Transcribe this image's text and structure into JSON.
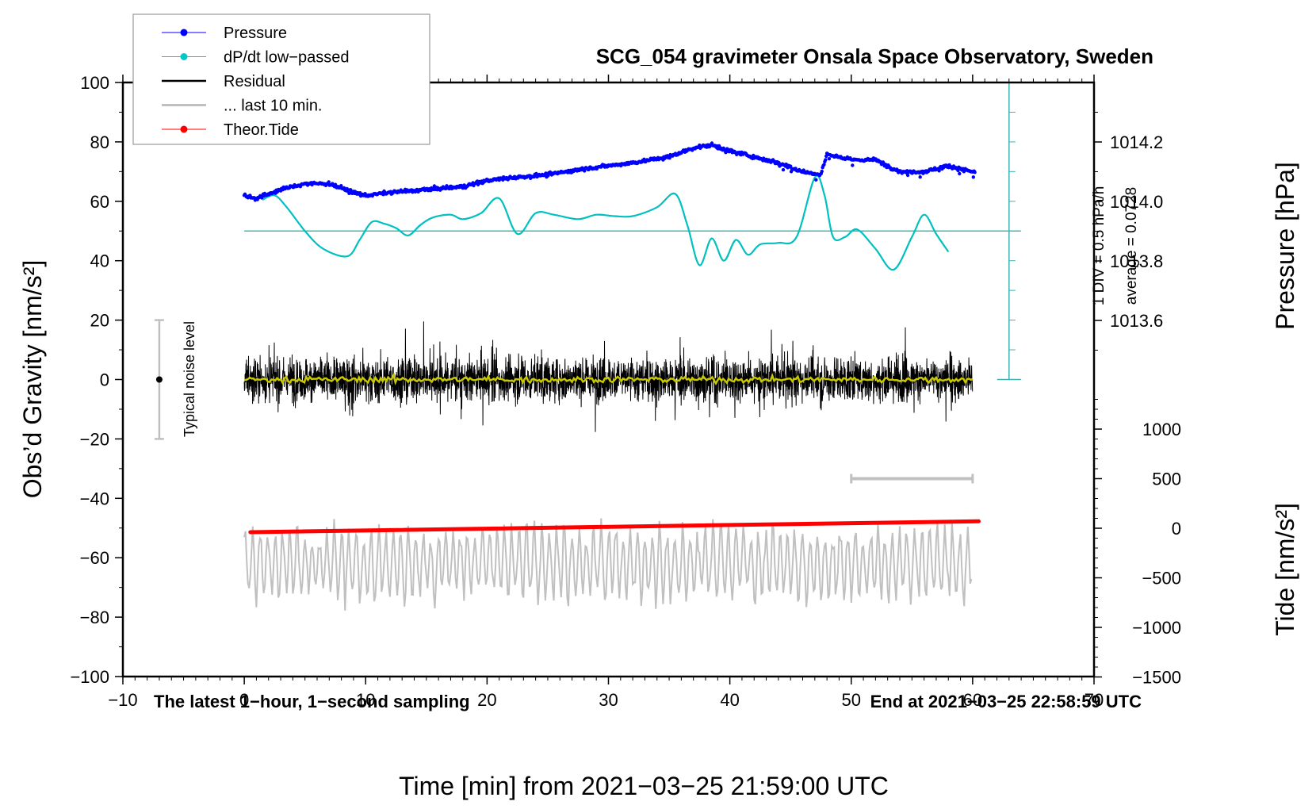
{
  "chart_data": {
    "type": "line",
    "title": "SCG_054 gravimeter Onsala Space Observatory, Sweden",
    "xlabel": "Time [min] from 2021−03−25 21:59:00 UTC",
    "ylabel_left": "Obs’d Gravity [nm/s²]",
    "ylabel_right_pressure": "Pressure [hPa]",
    "ylabel_right_tide": "Tide [nm/s²]",
    "xlim": [
      -10,
      70
    ],
    "ylim": [
      -100,
      100
    ],
    "pressure_ylim_ticks": [
      1013.6,
      1013.8,
      1014.0,
      1014.2
    ],
    "tide_ticks": [
      -1500,
      -1000,
      -500,
      0,
      500,
      1000
    ],
    "x_ticks": [
      "−10",
      "0",
      "10",
      "20",
      "30",
      "40",
      "50",
      "60",
      "70"
    ],
    "y_ticks": [
      "−100",
      "−80",
      "−60",
      "−40",
      "−20",
      "0",
      "20",
      "40",
      "60",
      "80",
      "100"
    ],
    "pressure_tick_labels": [
      "1013.6",
      "1013.8",
      "1014.0",
      "1014.2"
    ],
    "tide_tick_labels": [
      "−1500",
      "−1000",
      "−500",
      "0",
      "500",
      "1000"
    ],
    "grid": false,
    "legend_position": "top-left",
    "legend": [
      {
        "label": "Pressure",
        "color": "#0000ff",
        "marker": "dot"
      },
      {
        "label": "dP/dt low−passed",
        "color": "#00c8c8",
        "marker": "dot"
      },
      {
        "label": "Residual",
        "color": "#000000",
        "marker": "line"
      },
      {
        "label": "... last 10 min.",
        "color": "#c0c0c0",
        "marker": "line"
      },
      {
        "label": "Theor.Tide",
        "color": "#ff0000",
        "marker": "dot"
      }
    ],
    "series": [
      {
        "name": "Pressure",
        "unit": "hPa",
        "color": "#0000ff",
        "x": [
          0,
          1,
          3,
          5,
          7,
          9,
          10,
          12,
          15,
          18,
          20,
          22,
          25,
          28,
          30,
          32,
          35,
          37,
          38.5,
          40,
          42,
          44,
          46,
          47.5,
          48,
          50,
          52,
          54,
          56,
          58,
          60
        ],
        "values": [
          1014.02,
          1014.01,
          1014.04,
          1014.06,
          1014.06,
          1014.03,
          1014.02,
          1014.03,
          1014.04,
          1014.05,
          1014.07,
          1014.08,
          1014.09,
          1014.11,
          1014.12,
          1014.13,
          1014.15,
          1014.18,
          1014.19,
          1014.17,
          1014.15,
          1014.13,
          1014.1,
          1014.09,
          1014.16,
          1014.14,
          1014.14,
          1014.1,
          1014.1,
          1014.12,
          1014.1
        ]
      },
      {
        "name": "dP/dt low-passed",
        "unit": "hPa/h (1 DIV = 0.5 hPa/h, zero line at average)",
        "color": "#00c8c8",
        "x": [
          1.5,
          2.5,
          3.5,
          5,
          6.5,
          8.5,
          9.5,
          10.5,
          11.5,
          12.5,
          13.5,
          14.5,
          15.5,
          17,
          18,
          19.5,
          21,
          22.5,
          24,
          25.5,
          27.5,
          29,
          30.5,
          32,
          34,
          35.5,
          36.5,
          37.5,
          38.5,
          39.5,
          40.5,
          41.5,
          42.5,
          44,
          45.5,
          47,
          47.8,
          48.5,
          49.5,
          50.5,
          52,
          53.5,
          55,
          56,
          57,
          58
        ],
        "values": [
          60.5,
          62,
          58,
          50,
          44,
          41.5,
          47,
          53,
          52.5,
          51,
          48.5,
          52,
          54.5,
          55.5,
          54,
          56,
          61,
          49,
          56,
          55.5,
          54,
          55.5,
          55,
          55,
          58,
          62.5,
          52,
          38.5,
          47.5,
          40,
          47,
          42,
          45.5,
          46,
          48,
          68,
          62,
          48,
          48,
          50.5,
          44,
          37,
          48,
          55.5,
          49,
          43
        ]
      },
      {
        "name": "Residual",
        "unit": "nm/s²",
        "color": "#000000",
        "x_range": [
          0,
          60
        ],
        "description": "1-second residual noise centered near 0, typical amplitude about ±10, peaks up to +24 and down to −20"
      },
      {
        "name": "Residual smoothed",
        "color": "#c8c800",
        "x_range": [
          0,
          60
        ],
        "values_approx": 0
      },
      {
        "name": "... last 10 min.",
        "unit": "nm/s²",
        "color": "#c0c0c0",
        "x_range": [
          0,
          60
        ],
        "description": "last 10-minute residual stretched across the axis, centered near −62, range about −77 to −46"
      },
      {
        "name": "Theor.Tide",
        "unit": "nm/s² (tide axis)",
        "color": "#ff0000",
        "x": [
          0.5,
          60.5
        ],
        "values": [
          -40,
          70
        ]
      }
    ],
    "annotations": {
      "noise_bar": {
        "label": "Typical noise level",
        "x": -7,
        "center": 0,
        "low": -20,
        "high": 20
      },
      "last10_bar": {
        "x_start": 50,
        "x_end": 60,
        "tide_value": 500
      },
      "left_bottom": "The latest 1−hour, 1−second sampling",
      "right_bottom": "End at 2021−03−25 22:58:59 UTC",
      "dpdt_scale": "1 DIV = 0.5 hPa/h",
      "dpdt_average": "average = 0.0728"
    }
  }
}
